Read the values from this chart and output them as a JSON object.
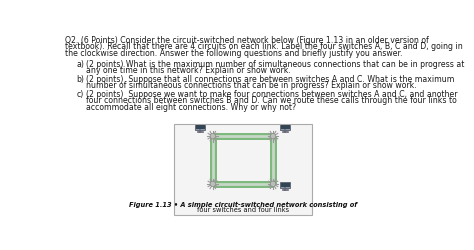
{
  "title_line1": "Q2. (6 Points) Consider the circuit-switched network below (Figure 1.13 in an older version of",
  "title_line2": "textbook). Recall that there are 4 circuits on each link. Label the four switches A, B, C and D, going in",
  "title_line3": "the clockwise direction. Answer the following questions and briefly justify you answer.",
  "q_a_label": "a)",
  "q_a_text1": "(2 points) What is the maximum number of simultaneous connections that can be in progress at",
  "q_a_text2": "any one time in this network? Explain or show work.",
  "q_b_label": "b)",
  "q_b_text1": "(2 points)  Suppose that all connections are between switches A and C. What is the maximum",
  "q_b_text2": "number of simultaneous connections that can be in progress? Explain or show work.",
  "q_c_label": "c)",
  "q_c_text1": "(2 points)  Suppose we want to make four connections between switches A and C, and another",
  "q_c_text2": "four connections between switches B and D. Can we route these calls through the four links to",
  "q_c_text3": "accommodate all eight connections. Why or why not?",
  "fig_caption1": "Figure 1.13 • A simple circuit-switched network consisting of",
  "fig_caption2": "four switches and four links",
  "background_color": "#ffffff",
  "text_color": "#1a1a1a",
  "link_color_outer": "#7db87d",
  "link_color_inner": "#c8d8c8",
  "switch_color": "#b0b8b0"
}
